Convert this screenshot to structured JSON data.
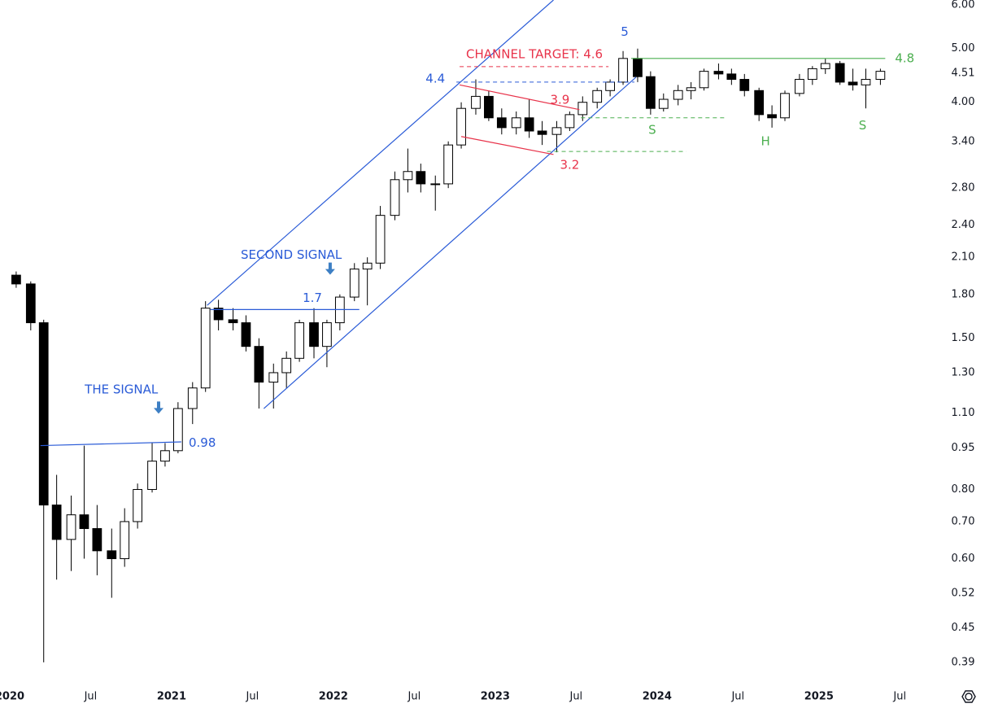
{
  "chart_data": {
    "type": "candlestick",
    "log_scale": true,
    "grid": false,
    "up_color": "#ffffff",
    "down_color": "#000000",
    "wick_color": "#000000",
    "xlim": [
      2019.94,
      2025.77
    ],
    "ylim": [
      0.357,
      6.12
    ],
    "xticks": [
      2020,
      {
        "value": 2020.5,
        "label": "Jul"
      },
      2021,
      {
        "value": 2021.5,
        "label": "Jul"
      },
      2022,
      {
        "value": 2022.5,
        "label": "Jul"
      },
      2023,
      {
        "value": 2023.5,
        "label": "Jul"
      },
      2024,
      {
        "value": 2024.5,
        "label": "Jul"
      },
      2025,
      {
        "value": 2025.5,
        "label": "Jul"
      }
    ],
    "yticks": [
      {
        "value": 6,
        "label": "6.00"
      },
      {
        "value": 5,
        "label": "5.00"
      },
      4.51,
      {
        "value": 4,
        "label": "4.00"
      },
      {
        "value": 3.4,
        "label": "3.40"
      },
      {
        "value": 2.8,
        "label": "2.80"
      },
      {
        "value": 2.4,
        "label": "2.40"
      },
      {
        "value": 2.1,
        "label": "2.10"
      },
      {
        "value": 1.8,
        "label": "1.80"
      },
      {
        "value": 1.5,
        "label": "1.50"
      },
      {
        "value": 1.3,
        "label": "1.30"
      },
      {
        "value": 1.1,
        "label": "1.10"
      },
      0.95,
      {
        "value": 0.8,
        "label": "0.80"
      },
      {
        "value": 0.7,
        "label": "0.70"
      },
      {
        "value": 0.6,
        "label": "0.60"
      },
      0.52,
      0.45,
      0.39
    ],
    "x": [
      2020.04,
      2020.13,
      2020.21,
      2020.29,
      2020.38,
      2020.46,
      2020.54,
      2020.63,
      2020.71,
      2020.79,
      2020.88,
      2020.96,
      2021.04,
      2021.13,
      2021.21,
      2021.29,
      2021.38,
      2021.46,
      2021.54,
      2021.63,
      2021.71,
      2021.79,
      2021.88,
      2021.96,
      2022.04,
      2022.13,
      2022.21,
      2022.29,
      2022.38,
      2022.46,
      2022.54,
      2022.63,
      2022.71,
      2022.79,
      2022.88,
      2022.96,
      2023.04,
      2023.13,
      2023.21,
      2023.29,
      2023.38,
      2023.46,
      2023.54,
      2023.63,
      2023.71,
      2023.79,
      2023.88,
      2023.96,
      2024.04,
      2024.13,
      2024.21,
      2024.29,
      2024.38,
      2024.46,
      2024.54,
      2024.63,
      2024.71,
      2024.79,
      2024.88,
      2024.96,
      2025.04,
      2025.13,
      2025.21,
      2025.29,
      2025.38
    ],
    "open": [
      1.95,
      1.88,
      1.6,
      0.75,
      0.65,
      0.72,
      0.68,
      0.62,
      0.6,
      0.7,
      0.8,
      0.9,
      0.94,
      1.12,
      1.22,
      1.7,
      1.62,
      1.6,
      1.45,
      1.25,
      1.3,
      1.38,
      1.6,
      1.45,
      1.6,
      1.78,
      2.0,
      2.05,
      2.5,
      2.9,
      3.0,
      2.85,
      2.85,
      3.35,
      3.9,
      4.1,
      3.75,
      3.6,
      3.75,
      3.55,
      3.5,
      3.6,
      3.8,
      4.0,
      4.2,
      4.35,
      4.8,
      4.45,
      3.9,
      4.05,
      4.2,
      4.25,
      4.55,
      4.5,
      4.4,
      4.2,
      3.8,
      3.75,
      4.15,
      4.4,
      4.6,
      4.7,
      4.35,
      4.3,
      4.4
    ],
    "high": [
      1.98,
      1.9,
      1.62,
      0.85,
      0.78,
      0.96,
      0.75,
      0.68,
      0.74,
      0.82,
      0.97,
      0.97,
      1.15,
      1.25,
      1.75,
      1.76,
      1.7,
      1.65,
      1.5,
      1.35,
      1.42,
      1.62,
      1.7,
      1.62,
      1.8,
      2.05,
      2.1,
      2.6,
      3.0,
      3.3,
      3.1,
      2.95,
      3.4,
      4.0,
      4.4,
      4.2,
      3.9,
      3.85,
      4.05,
      3.7,
      3.7,
      3.85,
      4.1,
      4.25,
      4.4,
      4.95,
      5.0,
      4.55,
      4.15,
      4.3,
      4.35,
      4.6,
      4.7,
      4.6,
      4.5,
      4.25,
      3.95,
      4.2,
      4.5,
      4.65,
      4.8,
      4.75,
      4.6,
      4.6,
      4.6
    ],
    "low": [
      1.85,
      1.55,
      0.39,
      0.55,
      0.57,
      0.6,
      0.56,
      0.51,
      0.58,
      0.68,
      0.79,
      0.88,
      0.93,
      1.05,
      1.2,
      1.55,
      1.55,
      1.42,
      1.12,
      1.12,
      1.22,
      1.36,
      1.38,
      1.33,
      1.55,
      1.75,
      1.72,
      2.0,
      2.45,
      2.75,
      2.75,
      2.55,
      2.8,
      3.3,
      3.8,
      3.7,
      3.5,
      3.5,
      3.45,
      3.35,
      3.25,
      3.55,
      3.7,
      3.9,
      4.1,
      4.3,
      4.35,
      3.8,
      3.85,
      3.95,
      4.05,
      4.2,
      4.4,
      4.3,
      4.1,
      3.7,
      3.6,
      3.7,
      4.1,
      4.3,
      4.5,
      4.3,
      4.2,
      3.9,
      4.3
    ],
    "close": [
      1.88,
      1.6,
      0.75,
      0.65,
      0.72,
      0.68,
      0.62,
      0.6,
      0.7,
      0.8,
      0.9,
      0.94,
      1.12,
      1.22,
      1.7,
      1.62,
      1.6,
      1.45,
      1.25,
      1.3,
      1.38,
      1.6,
      1.45,
      1.6,
      1.78,
      2.0,
      2.05,
      2.5,
      2.9,
      3.0,
      2.85,
      2.85,
      3.35,
      3.9,
      4.1,
      3.75,
      3.6,
      3.75,
      3.55,
      3.5,
      3.6,
      3.8,
      4.0,
      4.2,
      4.35,
      4.8,
      4.45,
      3.9,
      4.05,
      4.2,
      4.25,
      4.55,
      4.5,
      4.4,
      4.2,
      3.8,
      3.75,
      4.15,
      4.4,
      4.6,
      4.7,
      4.35,
      4.3,
      4.4,
      4.55
    ],
    "lines": [
      {
        "x": [
          2021.22,
          2023.36
        ],
        "y": [
          1.72,
          6.12
        ],
        "color": "#2a5bd7",
        "dashed": false
      },
      {
        "x": [
          2021.57,
          2023.87
        ],
        "y": [
          1.12,
          4.44
        ],
        "color": "#2a5bd7",
        "dashed": false
      },
      {
        "x": [
          2020.19,
          2021.06
        ],
        "y": [
          0.96,
          0.975
        ],
        "color": "#2a5bd7",
        "dashed": false
      },
      {
        "x": [
          2021.24,
          2022.16
        ],
        "y": [
          1.69,
          1.69
        ],
        "color": "#2a5bd7",
        "dashed": false
      },
      {
        "x": [
          2022.76,
          2023.86
        ],
        "y": [
          4.35,
          4.35
        ],
        "color": "#2a5bd7",
        "dashed": true
      },
      {
        "x": [
          2022.78,
          2023.52
        ],
        "y": [
          4.3,
          3.88
        ],
        "color": "#e8334a",
        "dashed": false
      },
      {
        "x": [
          2022.79,
          2023.36
        ],
        "y": [
          3.47,
          3.22
        ],
        "color": "#e8334a",
        "dashed": false
      },
      {
        "x": [
          2022.78,
          2023.7
        ],
        "y": [
          4.64,
          4.64
        ],
        "color": "#e8334a",
        "dashed": true
      },
      {
        "x": [
          2023.84,
          2025.41
        ],
        "y": [
          4.8,
          4.8
        ],
        "color": "#4caf50",
        "dashed": false
      },
      {
        "x": [
          2023.53,
          2024.43
        ],
        "y": [
          3.75,
          3.75
        ],
        "color": "#4caf50",
        "dashed": true
      },
      {
        "x": [
          2023.32,
          2024.18
        ],
        "y": [
          3.26,
          3.26
        ],
        "color": "#4caf50",
        "dashed": true
      }
    ],
    "annotations": [
      {
        "text": "CHANNEL TARGET: 4.6",
        "x": 2022.82,
        "y": 4.88,
        "color": "#e8334a",
        "anchor": "start"
      },
      {
        "text": "5",
        "x": 2023.8,
        "y": 5.35,
        "color": "#2a5bd7",
        "anchor": "middle"
      },
      {
        "text": "4.4",
        "x": 2022.63,
        "y": 4.41,
        "color": "#2a5bd7",
        "anchor": "middle"
      },
      {
        "text": "3.9",
        "x": 2023.4,
        "y": 4.04,
        "color": "#e8334a",
        "anchor": "middle"
      },
      {
        "text": "3.2",
        "x": 2023.46,
        "y": 3.08,
        "color": "#e8334a",
        "anchor": "middle"
      },
      {
        "text": "4.8",
        "x": 2025.53,
        "y": 4.8,
        "color": "#4caf50",
        "anchor": "middle"
      },
      {
        "text": "S",
        "x": 2023.97,
        "y": 3.56,
        "color": "#4caf50",
        "anchor": "middle"
      },
      {
        "text": "H",
        "x": 2024.67,
        "y": 3.4,
        "color": "#4caf50",
        "anchor": "middle"
      },
      {
        "text": "S",
        "x": 2025.27,
        "y": 3.63,
        "color": "#4caf50",
        "anchor": "middle"
      },
      {
        "text": "THE SIGNAL",
        "x": 2020.69,
        "y": 1.21,
        "color": "#2a5bd7",
        "anchor": "middle"
      },
      {
        "text": "SECOND SIGNAL",
        "x": 2021.74,
        "y": 2.12,
        "color": "#2a5bd7",
        "anchor": "middle"
      },
      {
        "text": "0.98",
        "x": 2021.19,
        "y": 0.97,
        "color": "#2a5bd7",
        "anchor": "middle"
      },
      {
        "text": "1.7",
        "x": 2021.87,
        "y": 1.77,
        "color": "#2a5bd7",
        "anchor": "middle"
      }
    ],
    "arrows": [
      {
        "x": 2020.92,
        "y": 1.1,
        "color": "#3d7fc4"
      },
      {
        "x": 2021.98,
        "y": 1.96,
        "color": "#3d7fc4"
      }
    ]
  }
}
